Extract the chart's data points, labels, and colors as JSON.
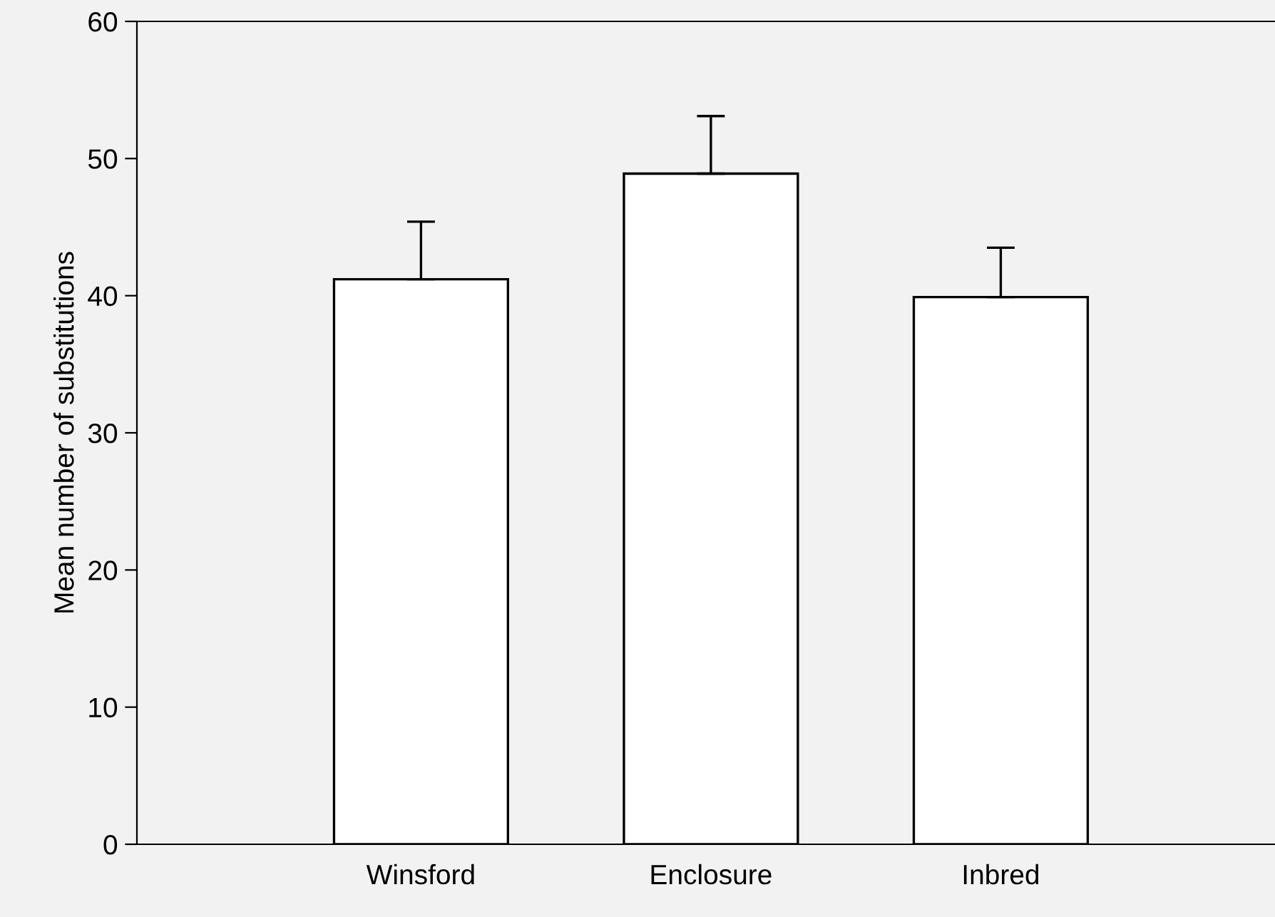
{
  "chart_data": {
    "type": "bar",
    "ylabel": "Mean number of substitutions",
    "categories": [
      "Winsford",
      "Enclosure",
      "Inbred"
    ],
    "values": [
      41.2,
      48.9,
      39.9
    ],
    "errors": [
      [
        41.2,
        45.4
      ],
      [
        48.9,
        53.1
      ],
      [
        39.9,
        43.5
      ]
    ],
    "color": "#ffffff",
    "ylim": [
      0,
      60
    ],
    "yticks": [
      0,
      10,
      20,
      30,
      40,
      50,
      60
    ],
    "grid": false,
    "legend": false
  }
}
